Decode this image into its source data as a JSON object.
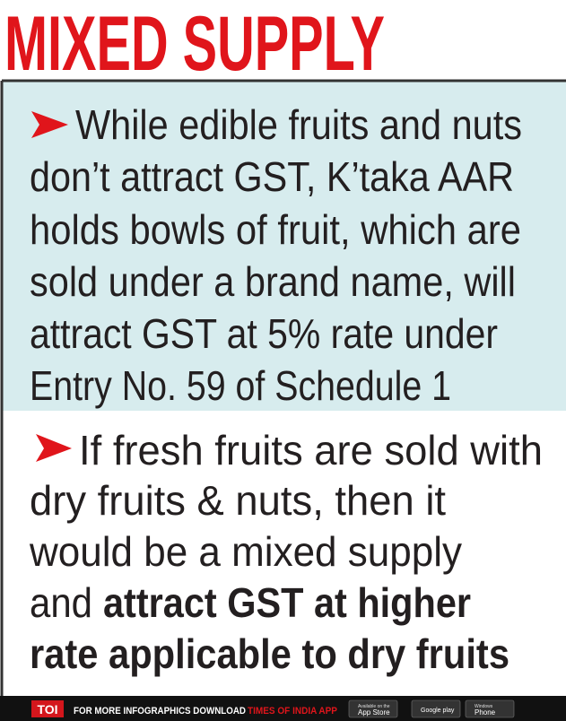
{
  "header": {
    "title": "MIXED SUPPLY"
  },
  "points": [
    {
      "lines": [
        "While edible fruits and nuts",
        "don’t attract GST,  K’taka AAR",
        "holds bowls of fruit, which are",
        "sold under a brand name, will",
        "attract GST at 5% rate under",
        "Entry No. 59 of Schedule 1"
      ]
    },
    {
      "lines": [
        "If fresh fruits are sold with",
        "dry fruits & nuts, then it",
        "would be a mixed supply",
        "and"
      ],
      "bold_lines": [
        "attract GST at higher",
        "rate applicable to dry fruits"
      ]
    }
  ],
  "footer": {
    "logo": "TOI",
    "text": "FOR MORE  INFOGRAPHICS DOWNLOAD",
    "app": "TIMES OF INDIA APP",
    "badges": [
      {
        "small": "Available on the",
        "label": "App Store"
      },
      {
        "small": "",
        "label": "Google play"
      },
      {
        "small": "Windows",
        "label": "Phone"
      }
    ]
  }
}
